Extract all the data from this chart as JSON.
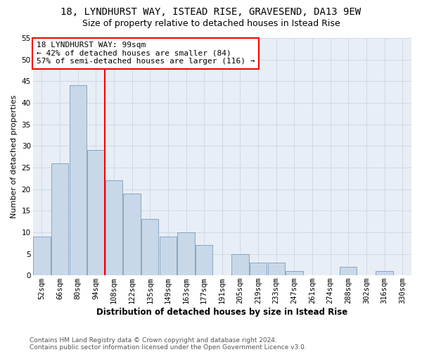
{
  "title1": "18, LYNDHURST WAY, ISTEAD RISE, GRAVESEND, DA13 9EW",
  "title2": "Size of property relative to detached houses in Istead Rise",
  "xlabel": "Distribution of detached houses by size in Istead Rise",
  "ylabel": "Number of detached properties",
  "bin_labels": [
    "52sqm",
    "66sqm",
    "80sqm",
    "94sqm",
    "108sqm",
    "122sqm",
    "135sqm",
    "149sqm",
    "163sqm",
    "177sqm",
    "191sqm",
    "205sqm",
    "219sqm",
    "233sqm",
    "247sqm",
    "261sqm",
    "274sqm",
    "288sqm",
    "302sqm",
    "316sqm",
    "330sqm"
  ],
  "bar_values": [
    9,
    26,
    44,
    29,
    22,
    19,
    13,
    9,
    10,
    7,
    0,
    5,
    3,
    3,
    1,
    0,
    0,
    2,
    0,
    1,
    0
  ],
  "bar_color": "#c8d8e8",
  "bar_edge_color": "#7a9cbf",
  "grid_color": "#d0d8e8",
  "bg_color": "#e8eef5",
  "vline_x_index": 3.5,
  "vline_color": "red",
  "annotation_line1": "18 LYNDHURST WAY: 99sqm",
  "annotation_line2": "← 42% of detached houses are smaller (84)",
  "annotation_line3": "57% of semi-detached houses are larger (116) →",
  "annotation_box_color": "white",
  "annotation_box_edge": "red",
  "ylim": [
    0,
    55
  ],
  "yticks": [
    0,
    5,
    10,
    15,
    20,
    25,
    30,
    35,
    40,
    45,
    50,
    55
  ],
  "footer1": "Contains HM Land Registry data © Crown copyright and database right 2024.",
  "footer2": "Contains public sector information licensed under the Open Government Licence v3.0.",
  "title1_fontsize": 10,
  "title2_fontsize": 9,
  "axis_label_fontsize": 8,
  "tick_fontsize": 7.5,
  "annotation_fontsize": 8,
  "footer_fontsize": 6.5
}
